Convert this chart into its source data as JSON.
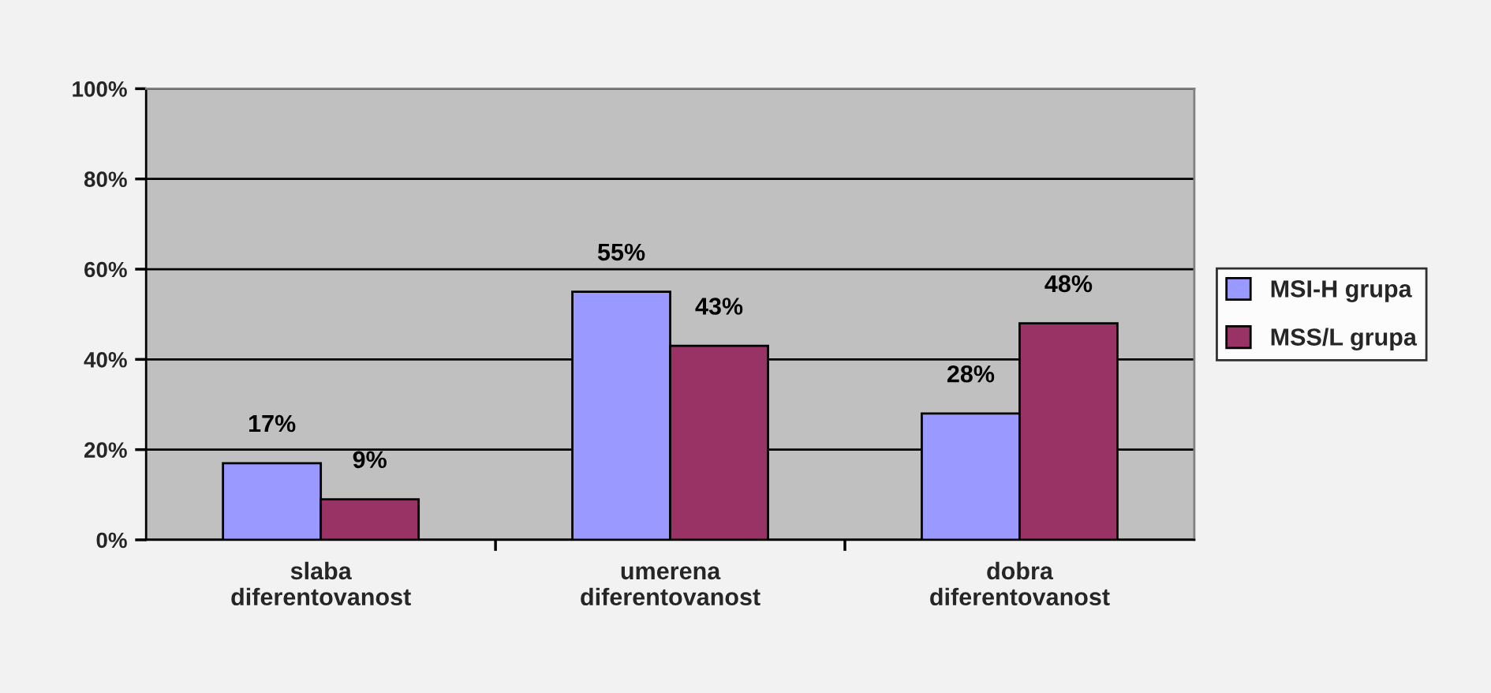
{
  "chart_data": {
    "type": "bar",
    "categories": [
      "slaba\ndiferentovanost",
      "umerena\ndiferentovanost",
      "dobra\ndiferentovanost"
    ],
    "series": [
      {
        "name": "MSI-H grupa",
        "color": "#9999ff",
        "values": [
          17,
          55,
          28
        ],
        "value_labels": [
          "17%",
          "55%",
          "28%"
        ]
      },
      {
        "name": "MSS/L grupa",
        "color": "#993366",
        "values": [
          9,
          43,
          48
        ],
        "value_labels": [
          "9%",
          "43%",
          "48%"
        ]
      }
    ],
    "ylim": [
      0,
      100
    ],
    "yticks": [
      {
        "value": 0,
        "label": "0%"
      },
      {
        "value": 20,
        "label": "20%"
      },
      {
        "value": 40,
        "label": "40%"
      },
      {
        "value": 60,
        "label": "60%"
      },
      {
        "value": 80,
        "label": "80%"
      },
      {
        "value": 100,
        "label": "100%"
      }
    ],
    "grid": "y",
    "legend": "right"
  }
}
